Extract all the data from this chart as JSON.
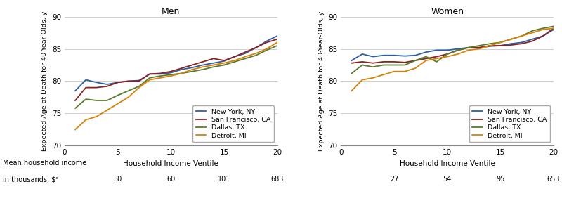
{
  "men": {
    "x": [
      1,
      2,
      3,
      4,
      5,
      6,
      7,
      8,
      9,
      10,
      11,
      12,
      13,
      14,
      15,
      16,
      17,
      18,
      19,
      20
    ],
    "new_york": [
      78.5,
      80.2,
      79.8,
      79.5,
      79.8,
      80.0,
      80.1,
      81.1,
      81.1,
      81.3,
      81.8,
      82.1,
      82.5,
      82.8,
      83.1,
      83.8,
      84.3,
      85.2,
      86.2,
      87.0
    ],
    "san_francisco": [
      77.0,
      79.0,
      79.0,
      79.2,
      79.8,
      80.0,
      80.0,
      81.1,
      81.2,
      81.5,
      82.0,
      82.5,
      83.0,
      83.5,
      83.2,
      83.8,
      84.5,
      85.2,
      86.0,
      86.5
    ],
    "dallas": [
      75.8,
      77.2,
      77.0,
      77.0,
      77.8,
      78.5,
      79.2,
      80.5,
      80.8,
      81.0,
      81.2,
      81.5,
      81.8,
      82.2,
      82.5,
      83.0,
      83.5,
      84.0,
      84.8,
      85.5
    ],
    "detroit": [
      72.5,
      74.0,
      74.5,
      75.5,
      76.5,
      77.5,
      79.0,
      80.2,
      80.5,
      80.8,
      81.2,
      81.8,
      82.2,
      82.5,
      82.8,
      83.2,
      83.8,
      84.3,
      85.0,
      86.0
    ]
  },
  "women": {
    "x": [
      1,
      2,
      3,
      4,
      5,
      6,
      7,
      8,
      9,
      10,
      11,
      12,
      13,
      14,
      15,
      16,
      17,
      18,
      19,
      20
    ],
    "new_york": [
      83.2,
      84.2,
      83.8,
      84.0,
      84.0,
      83.9,
      84.0,
      84.5,
      84.8,
      84.8,
      85.0,
      85.2,
      85.2,
      85.4,
      85.5,
      85.8,
      86.0,
      86.5,
      87.0,
      88.0
    ],
    "san_francisco": [
      82.8,
      83.0,
      82.8,
      83.0,
      83.0,
      82.9,
      83.2,
      83.5,
      83.8,
      84.2,
      84.8,
      85.2,
      85.2,
      85.5,
      85.5,
      85.6,
      85.8,
      86.2,
      87.0,
      88.2
    ],
    "dallas": [
      81.2,
      82.5,
      82.2,
      82.5,
      82.5,
      82.5,
      83.2,
      83.8,
      83.0,
      84.2,
      84.8,
      85.2,
      85.5,
      85.8,
      86.0,
      86.5,
      87.0,
      87.8,
      88.2,
      88.5
    ],
    "detroit": [
      78.5,
      80.2,
      80.5,
      81.0,
      81.5,
      81.5,
      82.0,
      83.2,
      83.5,
      83.8,
      84.2,
      84.8,
      85.0,
      85.5,
      86.0,
      86.5,
      87.0,
      87.5,
      88.0,
      88.2
    ]
  },
  "colors": {
    "new_york": "#2e5fa3",
    "san_francisco": "#8b2222",
    "dallas": "#5a7a2e",
    "detroit": "#d4820a"
  },
  "labels": {
    "new_york": "New York, NY",
    "san_francisco": "San Francisco, CA",
    "dallas": "Dallas, TX",
    "detroit": "Detroit, MI"
  },
  "ylim": [
    70,
    90
  ],
  "xlim": [
    0,
    20
  ],
  "yticks": [
    70,
    75,
    80,
    85,
    90
  ],
  "xticks": [
    0,
    5,
    10,
    15,
    20
  ],
  "ylabel": "Expected Age at Death for 40-Year-Olds, y",
  "xlabel": "Household Income Ventile",
  "men_title": "Men",
  "women_title": "Women",
  "bottom_label_line1": "Mean household income",
  "bottom_label_line2": "in thousands, $ᵃ",
  "men_income_vals": [
    5,
    10,
    15,
    20
  ],
  "men_income_labels": [
    "30",
    "60",
    "101",
    "683"
  ],
  "women_income_vals": [
    5,
    10,
    15,
    20
  ],
  "women_income_labels": [
    "27",
    "54",
    "95",
    "653"
  ],
  "bg_color": "#ffffff",
  "line_width": 1.3
}
